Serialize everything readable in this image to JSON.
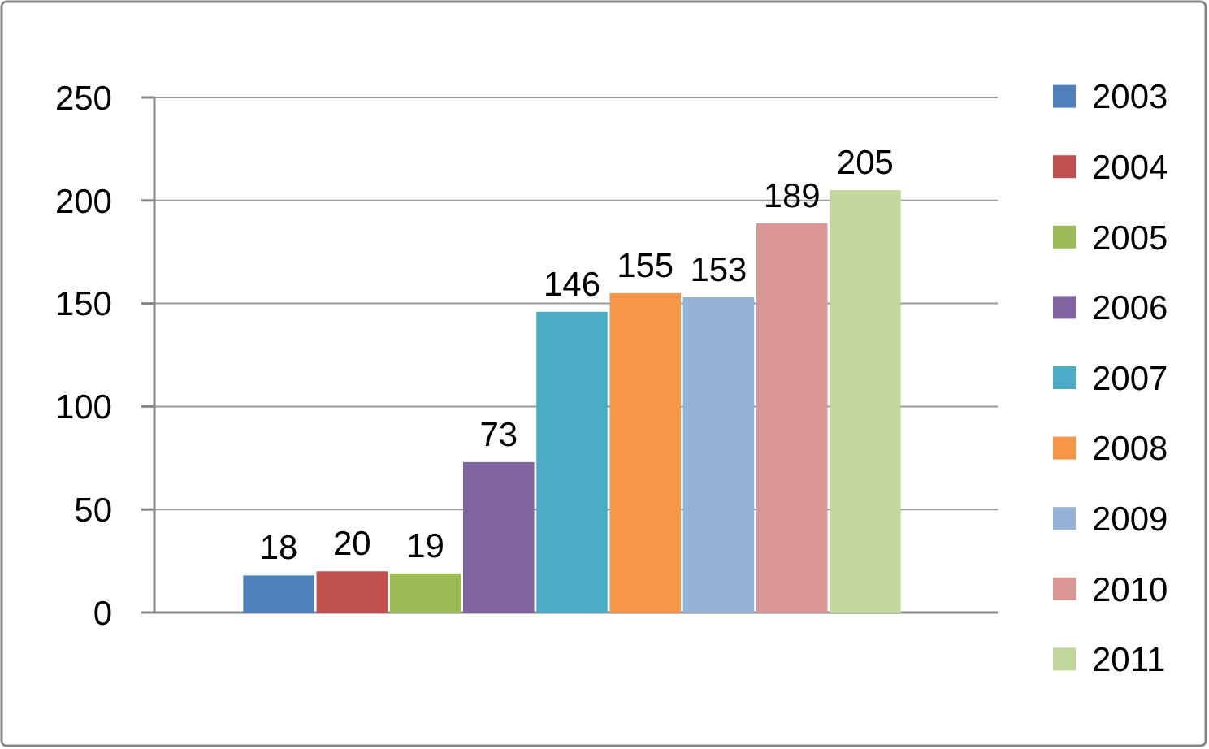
{
  "chart_data": {
    "type": "bar",
    "categories": [
      null
    ],
    "series": [
      {
        "name": "2003",
        "color": "#4f81bd",
        "values": [
          18
        ]
      },
      {
        "name": "2004",
        "color": "#c0504d",
        "values": [
          20
        ]
      },
      {
        "name": "2005",
        "color": "#9bbb59",
        "values": [
          19
        ]
      },
      {
        "name": "2006",
        "color": "#8064a2",
        "values": [
          73
        ]
      },
      {
        "name": "2007",
        "color": "#4bacc6",
        "values": [
          146
        ]
      },
      {
        "name": "2008",
        "color": "#f79646",
        "values": [
          155
        ]
      },
      {
        "name": "2009",
        "color": "#95b3d7",
        "values": [
          153
        ]
      },
      {
        "name": "2010",
        "color": "#d99694",
        "values": [
          189
        ]
      },
      {
        "name": "2011",
        "color": "#c3d69b",
        "values": [
          205
        ]
      }
    ],
    "ylim": [
      0,
      250
    ],
    "yticks": [
      0,
      50,
      100,
      150,
      200,
      250
    ],
    "grid": "y",
    "legend": "right",
    "data_labels": true
  }
}
